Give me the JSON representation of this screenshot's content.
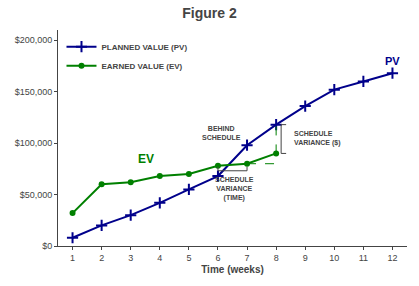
{
  "chart_data": {
    "type": "line",
    "title": "Figure 2",
    "xlabel": "Time (weeks)",
    "series": [
      {
        "name": "PLANNED VALUE (PV)",
        "color": "#00008B",
        "marker": "plus",
        "x": [
          1,
          2,
          3,
          4,
          5,
          6,
          7,
          8,
          9,
          10,
          11,
          12
        ],
        "values": [
          8000,
          20000,
          30000,
          42000,
          55000,
          68000,
          98000,
          118000,
          136000,
          152000,
          160000,
          168000
        ]
      },
      {
        "name": "EARNED VALUE (EV)",
        "color": "#008000",
        "marker": "circle",
        "x": [
          1,
          2,
          3,
          4,
          5,
          6,
          7,
          8
        ],
        "values": [
          32000,
          60000,
          62000,
          68000,
          70000,
          78000,
          80000,
          90000
        ]
      }
    ],
    "annotations": [
      "PV",
      "EV",
      "BEHIND\nSCHEDULE",
      "SCHEDULE\nVARIANCE ($)",
      "SCHEDULE\nVARIANCE\n(TIME)"
    ],
    "xlim": [
      0.5,
      12.5
    ],
    "xticks": [
      1,
      2,
      3,
      4,
      5,
      6,
      7,
      8,
      9,
      10,
      11,
      12
    ],
    "ylim": [
      0,
      210000
    ],
    "yticks": [
      {
        "value": 0,
        "label": "$0"
      },
      {
        "value": 50000,
        "label": "$50,000"
      },
      {
        "value": 100000,
        "label": "$100,000"
      },
      {
        "value": 150000,
        "label": "$150,000"
      },
      {
        "value": 200000,
        "label": "$200,000"
      }
    ],
    "grid": false,
    "legend": "upper left"
  }
}
